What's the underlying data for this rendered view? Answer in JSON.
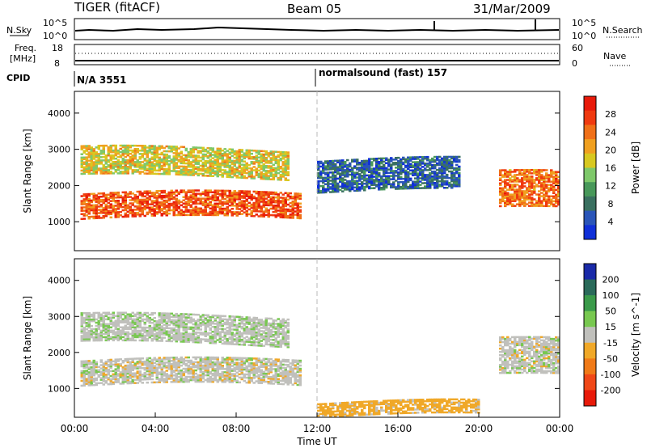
{
  "header": {
    "station": "TIGER (fitACF)",
    "beam": "Beam 05",
    "date": "31/Mar/2009"
  },
  "panels": {
    "nsky": {
      "label": "N.Sky",
      "left_ticks": [
        "10^5",
        "10^0"
      ],
      "right_ticks": [
        "10^5",
        "10^0"
      ],
      "right_label": "N.Search"
    },
    "freq": {
      "label_line1": "Freq.",
      "label_line2": "[MHz]",
      "left_ticks": [
        "18",
        "8"
      ],
      "right_ticks": [
        "60",
        "0"
      ],
      "right_label": "Nave"
    },
    "cpid": {
      "label": "CPID",
      "segments": [
        {
          "text": "N/A 3551",
          "start_hour": 0
        },
        {
          "text": "normalsound (fast) 157",
          "start_hour": 12
        }
      ]
    }
  },
  "chart_data": [
    {
      "type": "heatmap",
      "title": "",
      "xlabel": "",
      "ylabel": "Slant Range [km]",
      "xlim": [
        0,
        24
      ],
      "ylim": [
        200,
        4600
      ],
      "y_ticks": [
        1000,
        2000,
        3000,
        4000
      ],
      "colorbar": {
        "label": "Power [dB]",
        "ticks": [
          4,
          8,
          12,
          16,
          20,
          24,
          28
        ],
        "range": [
          0,
          32
        ],
        "colors": [
          "#1030d8",
          "#2a55b8",
          "#3a7060",
          "#48985a",
          "#7ec86a",
          "#d8c820",
          "#f0a020",
          "#f07018",
          "#f03a10",
          "#e81a0a"
        ]
      },
      "regions": [
        {
          "name": "lower band",
          "t_start": 0.3,
          "t_end": 11.2,
          "r_start": 1050,
          "r_end": 1750,
          "level": 26
        },
        {
          "name": "upper band",
          "t_start": 0.3,
          "t_end": 10.5,
          "r_start": 2200,
          "r_end": 3000,
          "level": 18
        },
        {
          "name": "evening band",
          "t_start": 21.0,
          "t_end": 24.0,
          "r_start": 1300,
          "r_end": 2300,
          "level": 24
        },
        {
          "name": "scattered echoes",
          "t_start": 12.0,
          "t_end": 19.0,
          "r_start": 1800,
          "r_end": 2700,
          "level": 6
        }
      ]
    },
    {
      "type": "heatmap",
      "title": "",
      "xlabel": "Time UT",
      "ylabel": "Slant Range [km]",
      "xlim": [
        0,
        24
      ],
      "ylim": [
        200,
        4600
      ],
      "x_ticks": [
        "00:00",
        "04:00",
        "08:00",
        "12:00",
        "16:00",
        "20:00",
        "00:00"
      ],
      "y_ticks": [
        1000,
        2000,
        3000,
        4000
      ],
      "colorbar": {
        "label": "Velocity [m s^-1]",
        "ticks": [
          200,
          100,
          50,
          15,
          -15,
          -50,
          -100,
          -200
        ],
        "range": [
          -250,
          250
        ],
        "colors": [
          "#1a2aa8",
          "#2a6a5a",
          "#3a9a4a",
          "#78c850",
          "#c0c0bc",
          "#f0a828",
          "#f07a18",
          "#f04818",
          "#e81a0a"
        ]
      },
      "regions": [
        {
          "name": "lower band",
          "t_start": 0.3,
          "t_end": 11.2,
          "r_start": 1050,
          "r_end": 1750,
          "level": 0
        },
        {
          "name": "upper band",
          "t_start": 0.3,
          "t_end": 10.5,
          "r_start": 2200,
          "r_end": 3000,
          "level": 5
        },
        {
          "name": "evening band",
          "t_start": 21.0,
          "t_end": 24.0,
          "r_start": 1300,
          "r_end": 2300,
          "level": 0
        },
        {
          "name": "ground scatter near range",
          "t_start": 12.0,
          "t_end": 20.0,
          "r_start": 200,
          "r_end": 600,
          "level": -30
        }
      ]
    }
  ]
}
